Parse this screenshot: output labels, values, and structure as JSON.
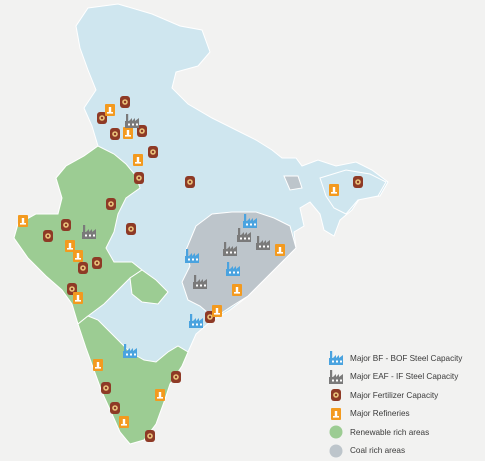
{
  "map": {
    "colors": {
      "background": "#f2f2f1",
      "default_region": "#cfe6ef",
      "renewable_region": "#9ccc93",
      "coal_region": "#bdc5cb",
      "steel_bf": "#4aa3df",
      "steel_eaf": "#7a7a7a",
      "fertilizer": "#8e3a26",
      "refinery": "#f39a1f"
    },
    "icons": {
      "steel_bf": "blue-factory-icon",
      "steel_eaf": "grey-factory-icon",
      "fertilizer": "fertilizer-sack-icon",
      "refinery": "refinery-flame-icon"
    }
  },
  "legend": {
    "items": [
      {
        "key": "steel_bf",
        "label": "Major BF - BOF Steel Capacity"
      },
      {
        "key": "steel_eaf",
        "label": "Major EAF - IF Steel Capacity"
      },
      {
        "key": "fertilizer",
        "label": "Major Fertilizer Capacity"
      },
      {
        "key": "refinery",
        "label": "Major Refineries"
      },
      {
        "key": "renewable",
        "label": "Renewable rich areas"
      },
      {
        "key": "coal",
        "label": "Coal rich areas"
      }
    ]
  }
}
